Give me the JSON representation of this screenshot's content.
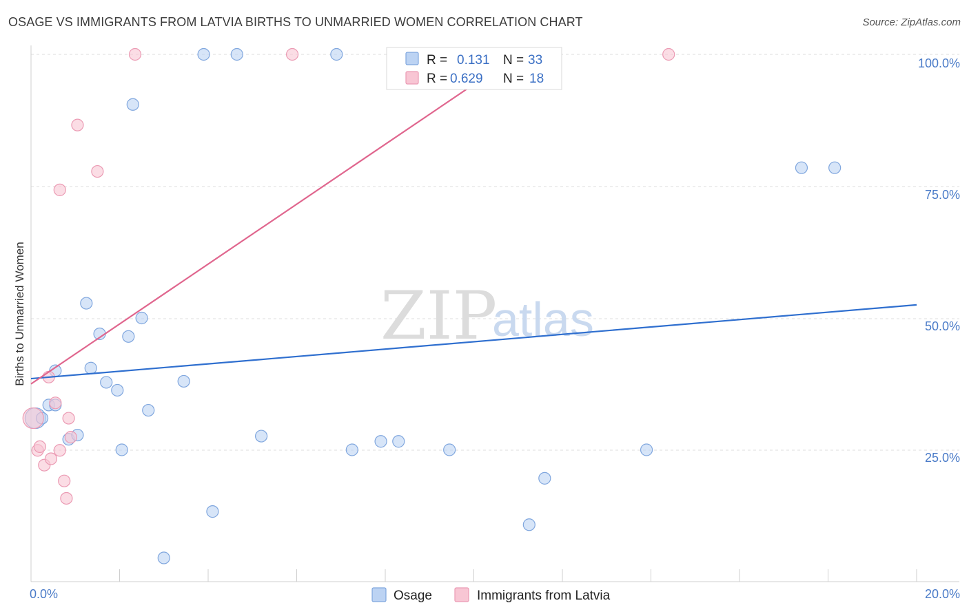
{
  "header": {
    "title": "OSAGE VS IMMIGRANTS FROM LATVIA BIRTHS TO UNMARRIED WOMEN CORRELATION CHART",
    "source": "Source: ZipAtlas.com"
  },
  "watermark": {
    "zip": "ZIP",
    "atlas": "atlas"
  },
  "legend": {
    "osage": {
      "r_label": "R =",
      "r_value": "0.131",
      "n_label": "N =",
      "n_value": "33"
    },
    "latvia": {
      "r_label": "R =",
      "r_value": "0.629",
      "n_label": "N =",
      "n_value": "18"
    }
  },
  "bottom_legend": {
    "osage": "Osage",
    "latvia": "Immigrants from Latvia"
  },
  "colors": {
    "osage_fill": "#bcd3f3",
    "osage_stroke": "#7fa6de",
    "osage_line": "#2f6fcf",
    "latvia_fill": "#f8c6d4",
    "latvia_stroke": "#eb9ab3",
    "latvia_line": "#e0668e",
    "tick_text": "#4a7bc8",
    "grid": "#dedede"
  },
  "chart_data": {
    "type": "scatter",
    "title": "OSAGE VS IMMIGRANTS FROM LATVIA BIRTHS TO UNMARRIED WOMEN CORRELATION CHART",
    "xlabel": "",
    "ylabel": "Births to Unmarried Women",
    "xlim": [
      0,
      20
    ],
    "ylim": [
      0,
      100
    ],
    "x_tick_labels": [
      {
        "value": 0,
        "label": "0.0%"
      },
      {
        "value": 20,
        "label": "20.0%"
      }
    ],
    "y_tick_labels": [
      {
        "value": 25,
        "label": "25.0%"
      },
      {
        "value": 50,
        "label": "50.0%"
      },
      {
        "value": 75,
        "label": "75.0%"
      },
      {
        "value": 100,
        "label": "100.0%"
      }
    ],
    "grid": "horizontal dashed",
    "legend_position": "top-center",
    "series": [
      {
        "name": "Osage",
        "r": 0.131,
        "n": 33,
        "points": [
          [
            0.1,
            31
          ],
          [
            0.25,
            31
          ],
          [
            0.4,
            33.5
          ],
          [
            0.55,
            33.5
          ],
          [
            0.55,
            40
          ],
          [
            0.85,
            27
          ],
          [
            1.05,
            27.8
          ],
          [
            1.25,
            52.8
          ],
          [
            1.35,
            40.5
          ],
          [
            1.55,
            47
          ],
          [
            1.7,
            37.8
          ],
          [
            1.95,
            36.3
          ],
          [
            2.05,
            25
          ],
          [
            2.2,
            46.5
          ],
          [
            2.3,
            90.5
          ],
          [
            2.5,
            50
          ],
          [
            2.65,
            32.5
          ],
          [
            3.0,
            4.5
          ],
          [
            3.45,
            38
          ],
          [
            3.9,
            100
          ],
          [
            4.1,
            13.3
          ],
          [
            4.65,
            100
          ],
          [
            5.2,
            27.6
          ],
          [
            6.9,
            100
          ],
          [
            7.25,
            25
          ],
          [
            7.9,
            26.6
          ],
          [
            8.3,
            26.6
          ],
          [
            9.45,
            25
          ],
          [
            11.25,
            10.8
          ],
          [
            11.6,
            19.6
          ],
          [
            13.9,
            25
          ],
          [
            17.4,
            78.5
          ],
          [
            18.15,
            78.5
          ]
        ],
        "trend": {
          "x": [
            0,
            20
          ],
          "y": [
            38.5,
            52.5
          ]
        }
      },
      {
        "name": "Immigrants from Latvia",
        "r": 0.629,
        "n": 18,
        "points": [
          [
            0.05,
            31
          ],
          [
            0.15,
            24.9
          ],
          [
            0.2,
            25.6
          ],
          [
            0.3,
            22.1
          ],
          [
            0.4,
            38.8
          ],
          [
            0.45,
            23.3
          ],
          [
            0.55,
            33.9
          ],
          [
            0.65,
            74.3
          ],
          [
            0.65,
            24.9
          ],
          [
            0.75,
            19.1
          ],
          [
            0.8,
            15.8
          ],
          [
            0.85,
            31
          ],
          [
            0.9,
            27.4
          ],
          [
            1.05,
            86.6
          ],
          [
            1.5,
            77.8
          ],
          [
            2.35,
            100
          ],
          [
            5.9,
            100
          ],
          [
            14.4,
            100
          ]
        ],
        "trend": {
          "x": [
            0,
            11
          ],
          "y": [
            37.5,
            100
          ]
        }
      }
    ]
  }
}
